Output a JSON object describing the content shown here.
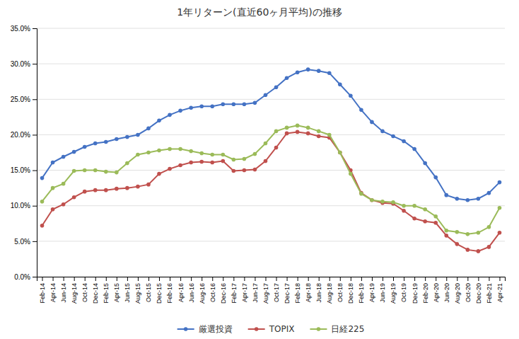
{
  "chart_data": {
    "type": "line",
    "title": "1年リターン(直近60ヶ月平均)の推移",
    "categories": [
      "Feb-14",
      "Apr-14",
      "Jun-14",
      "Aug-14",
      "Oct-14",
      "Dec-14",
      "Feb-15",
      "Apr-15",
      "Jun-15",
      "Aug-15",
      "Oct-15",
      "Dec-15",
      "Feb-16",
      "Apr-16",
      "Jun-16",
      "Aug-16",
      "Oct-16",
      "Dec-16",
      "Feb-17",
      "Apr-17",
      "Jun-17",
      "Aug-17",
      "Oct-17",
      "Dec-17",
      "Feb-18",
      "Apr-18",
      "Jun-18",
      "Aug-18",
      "Oct-18",
      "Dec-18",
      "Feb-19",
      "Apr-19",
      "Jun-19",
      "Aug-19",
      "Oct-19",
      "Dec-19",
      "Feb-20",
      "Apr-20",
      "Jun-20",
      "Aug-20",
      "Oct-20",
      "Dec-20",
      "Feb-21",
      "Apr-21"
    ],
    "series": [
      {
        "name": "厳選投資",
        "color": "#4472C4",
        "values": [
          0.139,
          0.161,
          0.169,
          0.176,
          0.183,
          0.188,
          0.19,
          0.194,
          0.197,
          0.2,
          0.209,
          0.22,
          0.228,
          0.234,
          0.238,
          0.24,
          0.24,
          0.243,
          0.243,
          0.243,
          0.245,
          0.256,
          0.267,
          0.28,
          0.288,
          0.292,
          0.29,
          0.287,
          0.271,
          0.255,
          0.235,
          0.218,
          0.205,
          0.198,
          0.191,
          0.18,
          0.16,
          0.14,
          0.115,
          0.11,
          0.108,
          0.11,
          0.118,
          0.133
        ]
      },
      {
        "name": "TOPIX",
        "color": "#C0504D",
        "values": [
          0.072,
          0.095,
          0.102,
          0.112,
          0.12,
          0.122,
          0.122,
          0.124,
          0.125,
          0.127,
          0.13,
          0.145,
          0.152,
          0.157,
          0.161,
          0.162,
          0.161,
          0.163,
          0.149,
          0.15,
          0.151,
          0.163,
          0.182,
          0.202,
          0.204,
          0.202,
          0.198,
          0.196,
          0.175,
          0.15,
          0.118,
          0.108,
          0.104,
          0.103,
          0.093,
          0.082,
          0.078,
          0.076,
          0.058,
          0.046,
          0.038,
          0.036,
          0.042,
          0.062
        ]
      },
      {
        "name": "日経225",
        "color": "#9BBB59",
        "values": [
          0.106,
          0.125,
          0.131,
          0.149,
          0.15,
          0.15,
          0.148,
          0.147,
          0.16,
          0.172,
          0.175,
          0.178,
          0.18,
          0.18,
          0.177,
          0.174,
          0.172,
          0.172,
          0.165,
          0.166,
          0.173,
          0.188,
          0.205,
          0.21,
          0.213,
          0.21,
          0.205,
          0.2,
          0.175,
          0.145,
          0.117,
          0.108,
          0.106,
          0.105,
          0.1,
          0.1,
          0.095,
          0.085,
          0.065,
          0.063,
          0.06,
          0.062,
          0.07,
          0.097
        ]
      }
    ],
    "ylim": [
      0.0,
      0.35
    ],
    "yticks": [
      {
        "value": 0.0,
        "label": "0.0%"
      },
      {
        "value": 0.05,
        "label": "5.0%"
      },
      {
        "value": 0.1,
        "label": "10.0%"
      },
      {
        "value": 0.15,
        "label": "15.0%"
      },
      {
        "value": 0.2,
        "label": "20.0%"
      },
      {
        "value": 0.25,
        "label": "25.0%"
      },
      {
        "value": 0.3,
        "label": "30.0%"
      },
      {
        "value": 0.35,
        "label": "35.0%"
      }
    ],
    "grid": true,
    "legend": "bottom",
    "marker": "circle"
  }
}
